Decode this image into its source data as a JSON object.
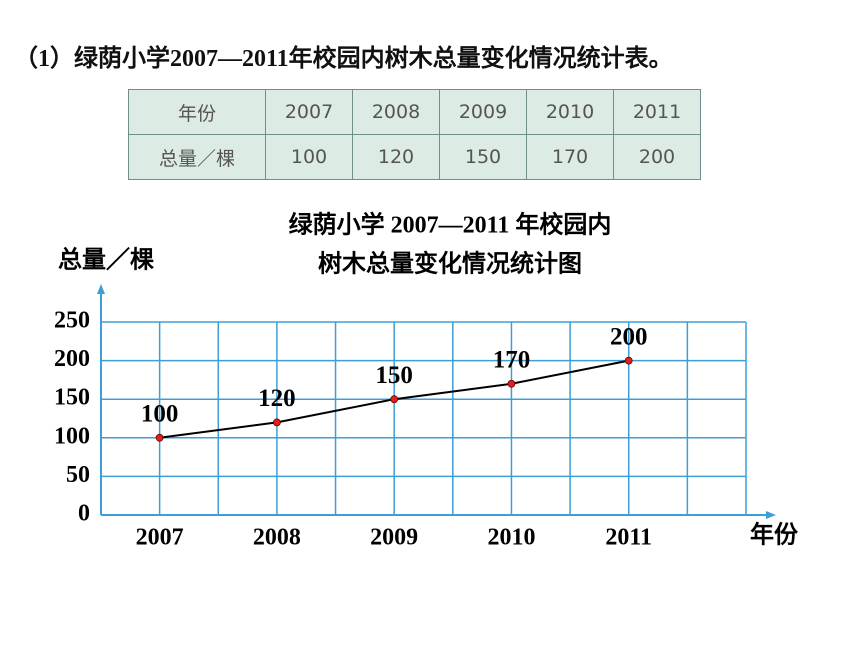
{
  "heading": "（1）绿荫小学2007—2011年校园内树木总量变化情况统计表。",
  "table": {
    "header": [
      "年份",
      "2007",
      "2008",
      "2009",
      "2010",
      "2011"
    ],
    "rows": [
      [
        "总量／棵",
        "100",
        "120",
        "150",
        "170",
        "200"
      ]
    ]
  },
  "chart_data": {
    "type": "line",
    "title": [
      "绿荫小学 2007—2011 年校园内",
      "树木总量变化情况统计图"
    ],
    "y_label": "总量／棵",
    "x_label": "年份",
    "categories": [
      "2007",
      "2008",
      "2009",
      "2010",
      "2011"
    ],
    "values": [
      100,
      120,
      150,
      170,
      200
    ],
    "line_color": "#000000",
    "marker_color": "#e0201b",
    "grid_color": "#3d9fd6",
    "ylim": [
      0,
      250
    ],
    "yticks": [
      0,
      50,
      100,
      150,
      200,
      250
    ],
    "grid": true
  }
}
